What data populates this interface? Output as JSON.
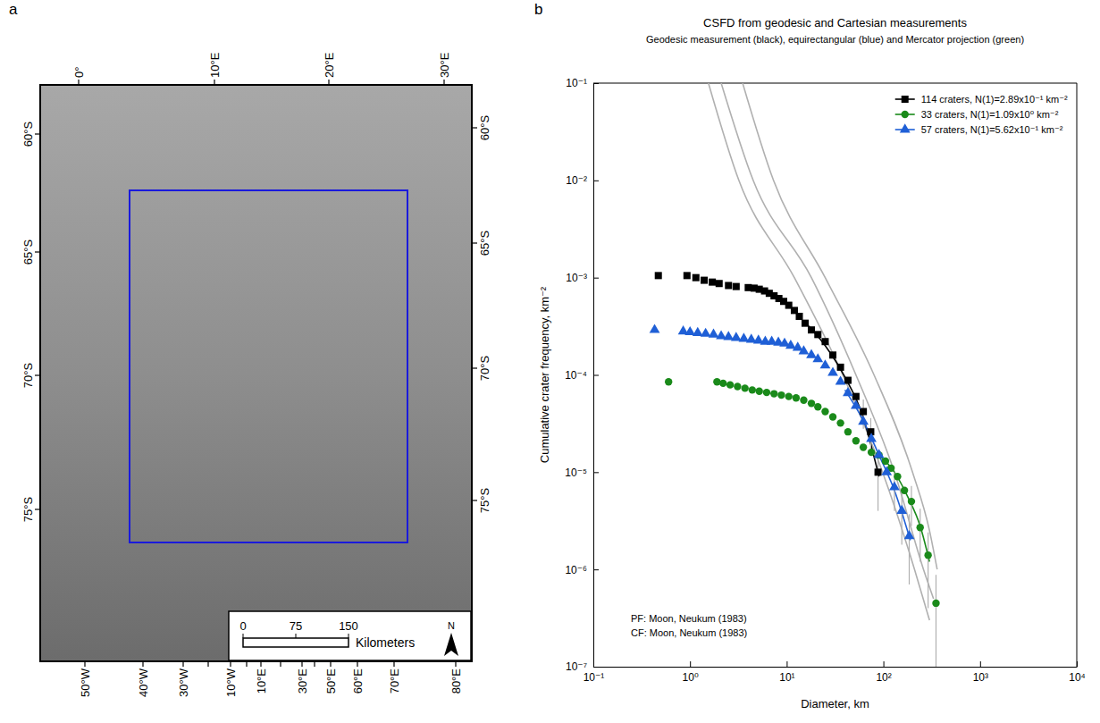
{
  "chart_data": [
    {
      "type": "map",
      "panel_label": "a",
      "color": "#1a1adc",
      "top_ticks": [
        {
          "value": 0,
          "label": "0°"
        },
        {
          "value": 10,
          "label": "10°E"
        },
        {
          "value": 20,
          "label": "20°E"
        },
        {
          "value": 30,
          "label": "30°E"
        }
      ],
      "left_ticks": [
        {
          "value": -60,
          "label": "60°S"
        },
        {
          "value": -65,
          "label": "65°S"
        },
        {
          "value": -70,
          "label": "70°S"
        },
        {
          "value": -75,
          "label": "75°S"
        }
      ],
      "right_ticks": [
        {
          "value": -60,
          "label": "60°S"
        },
        {
          "value": -65,
          "label": "65°S"
        },
        {
          "value": -70,
          "label": "70°S"
        },
        {
          "value": -75,
          "label": "75°S"
        }
      ],
      "bottom_ticks": [
        {
          "value": -50,
          "label": "50°W"
        },
        {
          "value": -40,
          "label": "40°W"
        },
        {
          "value": -30,
          "label": "30°W"
        },
        {
          "value": -20,
          "label": null
        },
        {
          "value": -10,
          "label": "10°W"
        },
        {
          "value": 0,
          "label": null
        },
        {
          "value": 10,
          "label": "10°E"
        },
        {
          "value": 20,
          "label": null
        },
        {
          "value": 30,
          "label": "30°E"
        },
        {
          "value": 40,
          "label": null
        },
        {
          "value": 50,
          "label": "50°E"
        },
        {
          "value": 60,
          "label": "60°E"
        },
        {
          "value": 70,
          "label": "70°E"
        },
        {
          "value": 80,
          "label": "80°E"
        }
      ],
      "scale_bar": {
        "ticks": [
          0,
          75,
          150
        ],
        "label": "Kilometers"
      },
      "north": "N"
    },
    {
      "type": "scatter",
      "panel_label": "b",
      "title": "CSFD from geodesic and Cartesian measurements",
      "subtitle": "Geodesic measurement (black), equirectangular (blue) and Mercator projection (green)",
      "x_label": "Diameter, km",
      "y_label": "Cumulative crater frequency, km⁻²",
      "log": true,
      "xlim": [
        0.1,
        10000
      ],
      "ylim": [
        1e-07,
        0.1
      ],
      "xticks": [
        {
          "value": 0.1,
          "label": "10⁻¹"
        },
        {
          "value": 1,
          "label": "10⁰"
        },
        {
          "value": 10,
          "label": "10¹"
        },
        {
          "value": 100,
          "label": "10²"
        },
        {
          "value": 1000,
          "label": "10³"
        },
        {
          "value": 10000,
          "label": "10⁴"
        }
      ],
      "yticks": [
        {
          "value": 1e-07,
          "label": "10⁻⁷"
        },
        {
          "value": 1e-06,
          "label": "10⁻⁶"
        },
        {
          "value": 1e-05,
          "label": "10⁻⁵"
        },
        {
          "value": 0.0001,
          "label": "10⁻⁴"
        },
        {
          "value": 0.001,
          "label": "10⁻³"
        },
        {
          "value": 0.01,
          "label": "10⁻²"
        },
        {
          "value": 0.1,
          "label": "10⁻¹"
        }
      ],
      "legend": "upper right",
      "annotations": [
        "PF: Moon, Neukum (1983)",
        "CF: Moon, Neukum (1983)"
      ],
      "series": [
        {
          "type": "line",
          "color": "#b0b0b0",
          "x": [
            1.55,
            3.2,
            12,
            38,
            98,
            210,
            300
          ],
          "values": [
            0.1,
            0.01,
            0.001,
            0.0001,
            1e-05,
            1e-06,
            3e-07
          ]
        },
        {
          "type": "line",
          "color": "#b0b0b0",
          "x": [
            2.1,
            4.5,
            18,
            52,
            130,
            260,
            330
          ],
          "values": [
            0.1,
            0.01,
            0.001,
            0.0001,
            1e-05,
            1e-06,
            5e-07
          ]
        },
        {
          "type": "line",
          "color": "#b0b0b0",
          "x": [
            3.5,
            7.3,
            25,
            80,
            200,
            300,
            360
          ],
          "values": [
            0.1,
            0.01,
            0.001,
            0.0001,
            1e-05,
            2.5e-06,
            1e-06
          ]
        },
        {
          "type": "line",
          "color": "#000000",
          "x": [
            15,
            25,
            40,
            60,
            90
          ],
          "values": [
            0.00036,
            0.0002,
            9.5e-05,
            4e-05,
            9e-06
          ]
        },
        {
          "type": "line",
          "color": "#1f5fd6",
          "x": [
            40,
            60,
            90,
            130,
            190
          ],
          "values": [
            7e-05,
            3.6e-05,
            1.5e-05,
            6.5e-06,
            2e-06
          ]
        },
        {
          "type": "line",
          "color": "#1a8a1a",
          "x": [
            90,
            130,
            180,
            240,
            300
          ],
          "values": [
            1.5e-05,
            1e-05,
            5.5e-06,
            2.8e-06,
            1.2e-06
          ]
        },
        {
          "type": "scatter",
          "name": "114 craters, N(1)=2.89x10⁻¹ km⁻²",
          "color": "#000000",
          "marker": "square",
          "x": [
            0.47,
            0.93,
            1.15,
            1.4,
            1.7,
            2.0,
            2.5,
            3.0,
            4.0,
            4.6,
            5.2,
            5.9,
            6.6,
            7.4,
            8.3,
            9.3,
            10.5,
            12,
            13.5,
            15.5,
            18,
            21,
            25,
            30,
            36,
            43,
            52,
            62,
            74,
            88
          ],
          "values": [
            0.00105,
            0.00105,
            0.001,
            0.00094,
            0.0009,
            0.00087,
            0.00083,
            0.00081,
            0.00079,
            0.00078,
            0.00076,
            0.00073,
            0.00069,
            0.00065,
            0.00061,
            0.00057,
            0.00052,
            0.00046,
            0.0004,
            0.00034,
            0.00029,
            0.00026,
            0.00022,
            0.00016,
            0.00012,
            8.8e-05,
            6e-05,
            4.2e-05,
            2.6e-05,
            1e-05
          ],
          "errors": [
            null,
            null,
            null,
            null,
            null,
            null,
            null,
            null,
            null,
            null,
            null,
            null,
            null,
            null,
            null,
            null,
            null,
            null,
            null,
            null,
            null,
            null,
            null,
            null,
            null,
            null,
            null,
            1.4e-05,
            1e-05,
            6e-06
          ]
        },
        {
          "type": "scatter",
          "name": "33 craters, N(1)=1.09x10⁰ km⁻²",
          "color": "#1a8a1a",
          "marker": "circle",
          "x": [
            0.6,
            1.9,
            2.2,
            2.6,
            3.1,
            3.7,
            4.4,
            5.2,
            6.2,
            7.4,
            8.8,
            10.5,
            12.5,
            15,
            18,
            21,
            25,
            30,
            36,
            43,
            52,
            62,
            75,
            90,
            105,
            120,
            140,
            165,
            195,
            240,
            290,
            350
          ],
          "values": [
            8.5e-05,
            8.5e-05,
            8.2e-05,
            7.9e-05,
            7.6e-05,
            7.3e-05,
            7e-05,
            6.8e-05,
            6.6e-05,
            6.4e-05,
            6.2e-05,
            6e-05,
            5.8e-05,
            5.5e-05,
            5.1e-05,
            4.7e-05,
            4.2e-05,
            3.7e-05,
            3.2e-05,
            2.6e-05,
            2.1e-05,
            1.8e-05,
            1.6e-05,
            1.5e-05,
            1.3e-05,
            1.1e-05,
            9e-06,
            6.5e-06,
            5e-06,
            2.7e-06,
            1.4e-06,
            4.5e-07
          ],
          "errors": [
            null,
            null,
            null,
            null,
            null,
            null,
            null,
            null,
            null,
            null,
            null,
            null,
            null,
            null,
            null,
            null,
            null,
            null,
            null,
            null,
            null,
            null,
            null,
            null,
            null,
            null,
            null,
            null,
            2.2e-06,
            1.5e-06,
            1e-06,
            4.3e-07
          ]
        },
        {
          "type": "scatter",
          "name": "57 craters, N(1)=5.62x10⁻¹ km⁻²",
          "color": "#1f5fd6",
          "marker": "triangle",
          "x": [
            0.43,
            0.85,
            1.0,
            1.2,
            1.45,
            1.75,
            2.1,
            2.5,
            3.0,
            3.6,
            4.3,
            5.1,
            6.0,
            7.0,
            8.2,
            9.5,
            11,
            13,
            15,
            18,
            21,
            25,
            30,
            36,
            43,
            52,
            62,
            75,
            90,
            108,
            130,
            155,
            185
          ],
          "values": [
            0.00029,
            0.00028,
            0.000275,
            0.00027,
            0.000265,
            0.00026,
            0.00025,
            0.000245,
            0.00024,
            0.000235,
            0.00023,
            0.000225,
            0.00022,
            0.00022,
            0.000215,
            0.00021,
            0.0002,
            0.00019,
            0.000175,
            0.00016,
            0.000145,
            0.000125,
            0.000105,
            8.5e-05,
            6.5e-05,
            4.8e-05,
            3.3e-05,
            2.2e-05,
            1.5e-05,
            1e-05,
            7e-06,
            4e-06,
            2.2e-06
          ],
          "errors": [
            null,
            null,
            null,
            null,
            null,
            null,
            null,
            null,
            null,
            null,
            null,
            null,
            null,
            null,
            null,
            null,
            null,
            null,
            null,
            null,
            null,
            null,
            null,
            null,
            null,
            null,
            null,
            null,
            null,
            null,
            3e-06,
            2.2e-06,
            1.5e-06
          ]
        }
      ]
    }
  ]
}
